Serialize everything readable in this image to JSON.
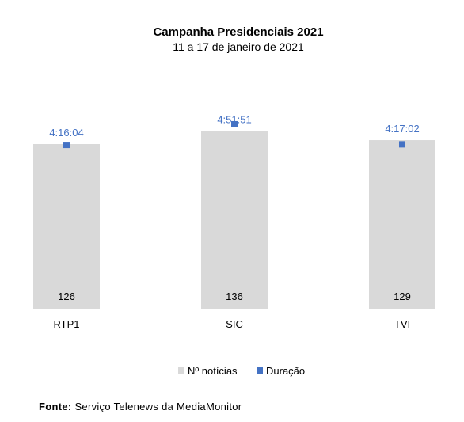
{
  "chart_data": {
    "type": "bar",
    "title": "Campanha Presidenciais 2021",
    "subtitle": "11 a 17 de janeiro de 2021",
    "categories": [
      "RTP1",
      "SIC",
      "TVI"
    ],
    "series": [
      {
        "name": "Nº notícias",
        "type": "bar",
        "color": "#d9d9d9",
        "values": [
          126,
          136,
          129
        ]
      },
      {
        "name": "Duração",
        "type": "scatter",
        "color": "#4472c4",
        "values": [
          256.07,
          291.85,
          257.03
        ],
        "labels": [
          "4:16:04",
          "4:51:51",
          "4:17:02"
        ]
      }
    ],
    "legend": "bottom",
    "grid": false
  },
  "source": {
    "label": "Fonte:",
    "text": "Serviço Telenews da MediaMonitor"
  }
}
